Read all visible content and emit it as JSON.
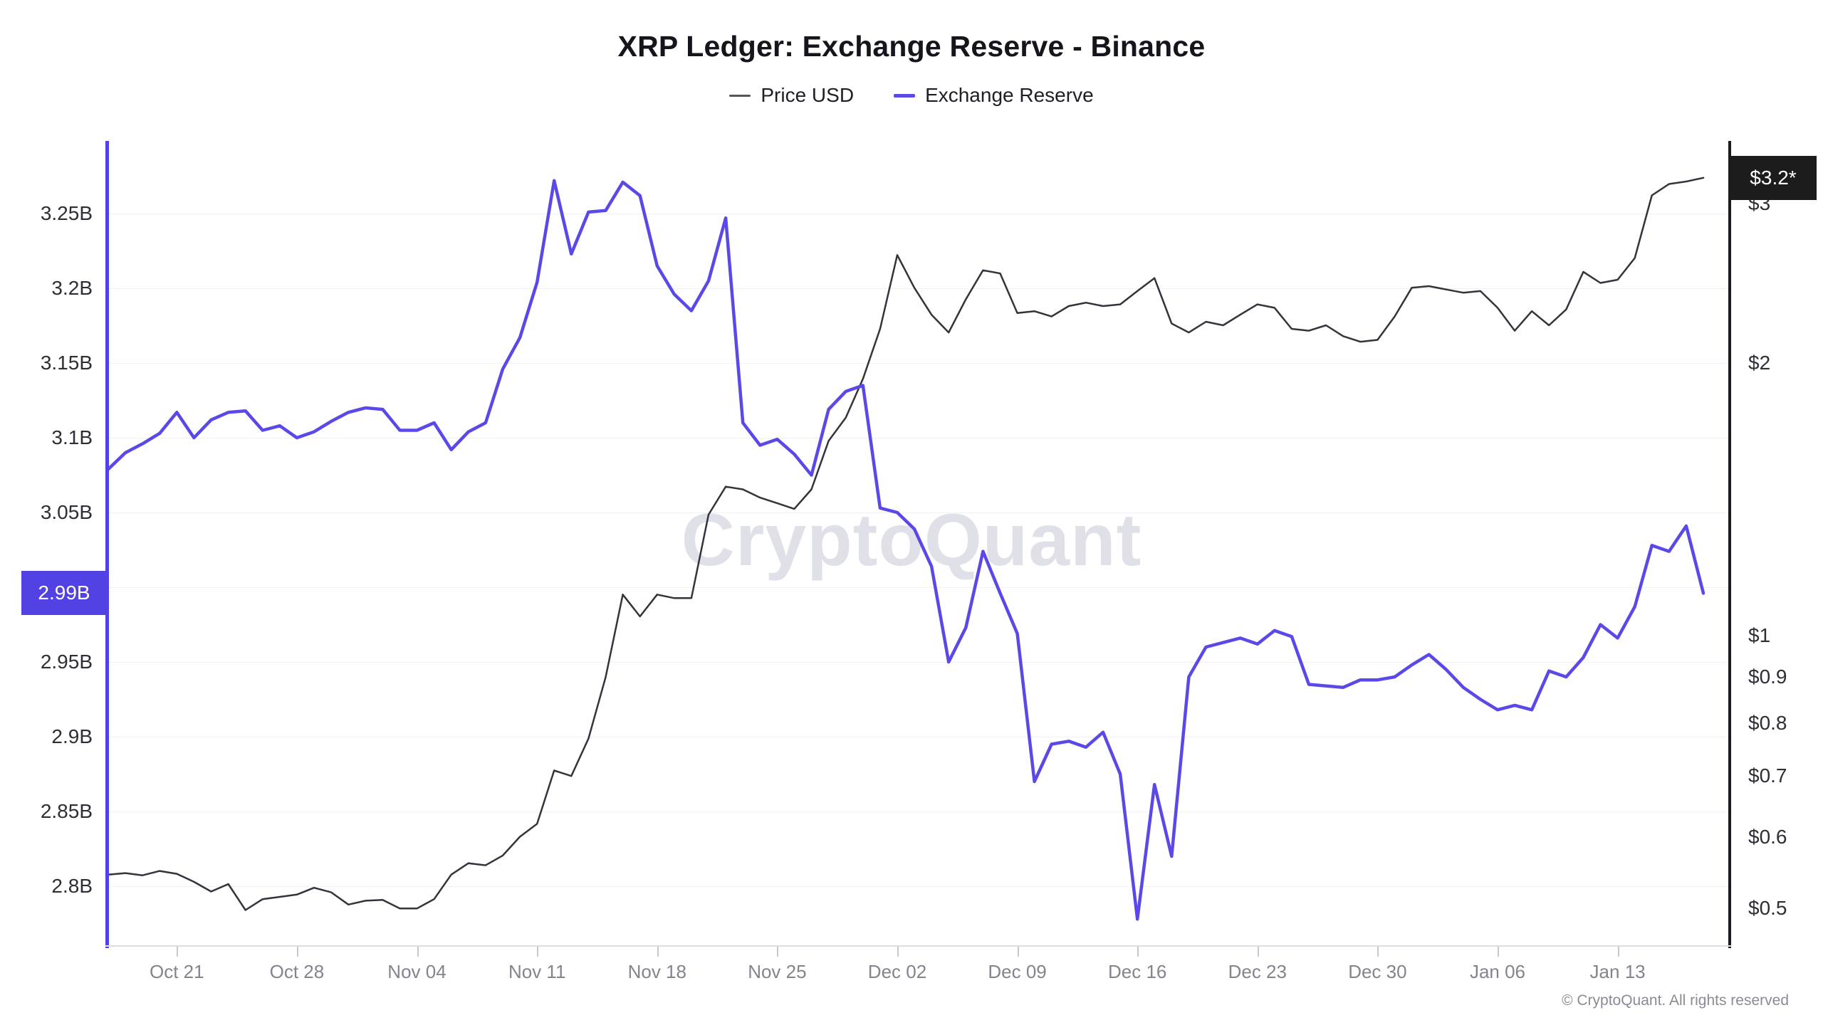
{
  "title": "XRP Ledger: Exchange Reserve - Binance",
  "legend": [
    {
      "label": "Price USD",
      "color": "#55555e",
      "thickness": 3
    },
    {
      "label": "Exchange Reserve",
      "color": "#5a49e8",
      "thickness": 5
    }
  ],
  "watermark": "CryptoQuant",
  "copyright": "© CryptoQuant. All rights reserved",
  "left_axis": {
    "current_badge": {
      "text": "2.99B",
      "value": 2.996
    },
    "labels": [
      {
        "text": "3.25B",
        "value": 3.25
      },
      {
        "text": "3.2B",
        "value": 3.2
      },
      {
        "text": "3.15B",
        "value": 3.15
      },
      {
        "text": "3.1B",
        "value": 3.1
      },
      {
        "text": "3.05B",
        "value": 3.05
      },
      {
        "text": "2.95B",
        "value": 2.95
      },
      {
        "text": "2.9B",
        "value": 2.9
      },
      {
        "text": "2.85B",
        "value": 2.85
      },
      {
        "text": "2.8B",
        "value": 2.8
      }
    ]
  },
  "right_axis": {
    "current_badge": {
      "text": "$3.2*",
      "value": 3.2
    },
    "labels": [
      {
        "text": "$3",
        "value": 3.0
      },
      {
        "text": "$2",
        "value": 2.0
      },
      {
        "text": "$1",
        "value": 1.0
      },
      {
        "text": "$0.9",
        "value": 0.9
      },
      {
        "text": "$0.8",
        "value": 0.8
      },
      {
        "text": "$0.7",
        "value": 0.7
      },
      {
        "text": "$0.6",
        "value": 0.6
      },
      {
        "text": "$0.5",
        "value": 0.5
      }
    ]
  },
  "x_axis": {
    "ticks": [
      {
        "label": "Oct 21",
        "index": 4
      },
      {
        "label": "Oct 28",
        "index": 11
      },
      {
        "label": "Nov 04",
        "index": 18
      },
      {
        "label": "Nov 11",
        "index": 25
      },
      {
        "label": "Nov 18",
        "index": 32
      },
      {
        "label": "Nov 25",
        "index": 39
      },
      {
        "label": "Dec 02",
        "index": 46
      },
      {
        "label": "Dec 09",
        "index": 53
      },
      {
        "label": "Dec 16",
        "index": 60
      },
      {
        "label": "Dec 23",
        "index": 67
      },
      {
        "label": "Dec 30",
        "index": 74
      },
      {
        "label": "Jan 06",
        "index": 81
      },
      {
        "label": "Jan 13",
        "index": 88
      }
    ]
  },
  "chart_data": {
    "type": "line",
    "title": "XRP Ledger: Exchange Reserve - Binance",
    "legend_position": "top",
    "x": [
      "Oct 17",
      "Oct 18",
      "Oct 19",
      "Oct 20",
      "Oct 21",
      "Oct 22",
      "Oct 23",
      "Oct 24",
      "Oct 25",
      "Oct 26",
      "Oct 27",
      "Oct 28",
      "Oct 29",
      "Oct 30",
      "Oct 31",
      "Nov 01",
      "Nov 02",
      "Nov 03",
      "Nov 04",
      "Nov 05",
      "Nov 06",
      "Nov 07",
      "Nov 08",
      "Nov 09",
      "Nov 10",
      "Nov 11",
      "Nov 12",
      "Nov 13",
      "Nov 14",
      "Nov 15",
      "Nov 16",
      "Nov 17",
      "Nov 18",
      "Nov 19",
      "Nov 20",
      "Nov 21",
      "Nov 22",
      "Nov 23",
      "Nov 24",
      "Nov 25",
      "Nov 26",
      "Nov 27",
      "Nov 28",
      "Nov 29",
      "Nov 30",
      "Dec 01",
      "Dec 02",
      "Dec 03",
      "Dec 04",
      "Dec 05",
      "Dec 06",
      "Dec 07",
      "Dec 08",
      "Dec 09",
      "Dec 10",
      "Dec 11",
      "Dec 12",
      "Dec 13",
      "Dec 14",
      "Dec 15",
      "Dec 16",
      "Dec 17",
      "Dec 18",
      "Dec 19",
      "Dec 20",
      "Dec 21",
      "Dec 22",
      "Dec 23",
      "Dec 24",
      "Dec 25",
      "Dec 26",
      "Dec 27",
      "Dec 28",
      "Dec 29",
      "Dec 30",
      "Dec 31",
      "Jan 01",
      "Jan 02",
      "Jan 03",
      "Jan 04",
      "Jan 05",
      "Jan 06",
      "Jan 07",
      "Jan 08",
      "Jan 09",
      "Jan 10",
      "Jan 11",
      "Jan 12",
      "Jan 13",
      "Jan 14",
      "Jan 15",
      "Jan 16",
      "Jan 17",
      "Jan 18"
    ],
    "series": [
      {
        "name": "Price USD",
        "axis": "right",
        "unit": "USD",
        "color": "#34343c",
        "width": 2.5,
        "values": [
          0.545,
          0.547,
          0.544,
          0.55,
          0.546,
          0.535,
          0.522,
          0.532,
          0.498,
          0.512,
          0.515,
          0.518,
          0.527,
          0.521,
          0.505,
          0.51,
          0.511,
          0.5,
          0.5,
          0.512,
          0.545,
          0.561,
          0.558,
          0.572,
          0.6,
          0.62,
          0.71,
          0.7,
          0.77,
          0.9,
          1.11,
          1.05,
          1.11,
          1.1,
          1.1,
          1.36,
          1.46,
          1.45,
          1.42,
          1.4,
          1.38,
          1.45,
          1.64,
          1.74,
          1.92,
          2.18,
          2.63,
          2.42,
          2.26,
          2.16,
          2.35,
          2.53,
          2.51,
          2.27,
          2.28,
          2.25,
          2.31,
          2.33,
          2.31,
          2.32,
          2.4,
          2.48,
          2.21,
          2.16,
          2.22,
          2.2,
          2.26,
          2.32,
          2.3,
          2.18,
          2.17,
          2.2,
          2.14,
          2.11,
          2.12,
          2.25,
          2.42,
          2.43,
          2.41,
          2.39,
          2.4,
          2.3,
          2.17,
          2.28,
          2.2,
          2.29,
          2.52,
          2.45,
          2.47,
          2.61,
          3.06,
          3.15,
          3.17,
          3.2
        ]
      },
      {
        "name": "Exchange Reserve",
        "axis": "left",
        "unit": "XRP (billions)",
        "color": "#5a49e8",
        "width": 4.5,
        "values": [
          3.079,
          3.09,
          3.096,
          3.103,
          3.117,
          3.1,
          3.112,
          3.117,
          3.118,
          3.105,
          3.108,
          3.1,
          3.104,
          3.111,
          3.117,
          3.12,
          3.119,
          3.105,
          3.105,
          3.11,
          3.092,
          3.104,
          3.11,
          3.146,
          3.167,
          3.204,
          3.272,
          3.223,
          3.251,
          3.252,
          3.271,
          3.262,
          3.215,
          3.196,
          3.185,
          3.205,
          3.247,
          3.11,
          3.095,
          3.099,
          3.089,
          3.075,
          3.119,
          3.131,
          3.135,
          3.053,
          3.05,
          3.039,
          3.014,
          2.95,
          2.973,
          3.024,
          2.996,
          2.969,
          2.87,
          2.895,
          2.897,
          2.893,
          2.903,
          2.875,
          2.778,
          2.868,
          2.82,
          2.94,
          2.96,
          2.963,
          2.966,
          2.962,
          2.971,
          2.967,
          2.935,
          2.934,
          2.933,
          2.938,
          2.938,
          2.94,
          2.948,
          2.955,
          2.945,
          2.933,
          2.925,
          2.918,
          2.921,
          2.918,
          2.944,
          2.94,
          2.953,
          2.975,
          2.966,
          2.987,
          3.028,
          3.024,
          3.041,
          2.996
        ]
      }
    ],
    "y_left": {
      "scale": "linear",
      "range": [
        2.755,
        3.3
      ],
      "gridline_values": [
        3.25,
        3.2,
        3.15,
        3.1,
        3.05,
        3.0,
        2.95,
        2.9,
        2.85,
        2.8
      ]
    },
    "y_right": {
      "scale": "log",
      "ticks": [
        3.0,
        2.0,
        1.0,
        0.9,
        0.8,
        0.7,
        0.6,
        0.5
      ]
    },
    "grid": "horizontal-only"
  }
}
